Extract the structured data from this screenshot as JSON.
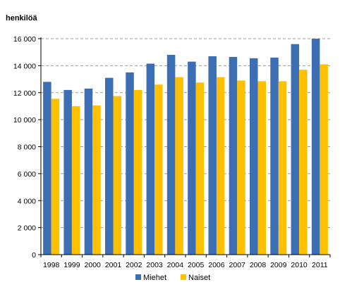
{
  "chart_data": {
    "type": "bar",
    "title": "",
    "ylabel": "henkilöä",
    "xlabel": "",
    "categories": [
      "1998",
      "1999",
      "2000",
      "2001",
      "2002",
      "2003",
      "2004",
      "2005",
      "2006",
      "2007",
      "2008",
      "2009",
      "2010",
      "2011"
    ],
    "series": [
      {
        "name": "Miehet",
        "color": "#3c6eb4",
        "values": [
          12800,
          12200,
          12300,
          13100,
          13500,
          14150,
          14800,
          14300,
          14700,
          14650,
          14550,
          14600,
          15600,
          16000
        ]
      },
      {
        "name": "Naiset",
        "color": "#ffc000",
        "values": [
          11550,
          11000,
          11050,
          11750,
          12200,
          12600,
          13150,
          12750,
          13150,
          12900,
          12850,
          12850,
          13700,
          14100
        ]
      }
    ],
    "ylim": [
      0,
      16000
    ],
    "yticks": [
      0,
      2000,
      4000,
      6000,
      8000,
      10000,
      12000,
      14000,
      16000
    ],
    "ytick_labels": [
      "0",
      "2 000",
      "4 000",
      "6 000",
      "8 000",
      "10 000",
      "12 000",
      "14 000",
      "16 000"
    ],
    "grid": "horizontal-dashed",
    "legend_position": "bottom"
  }
}
